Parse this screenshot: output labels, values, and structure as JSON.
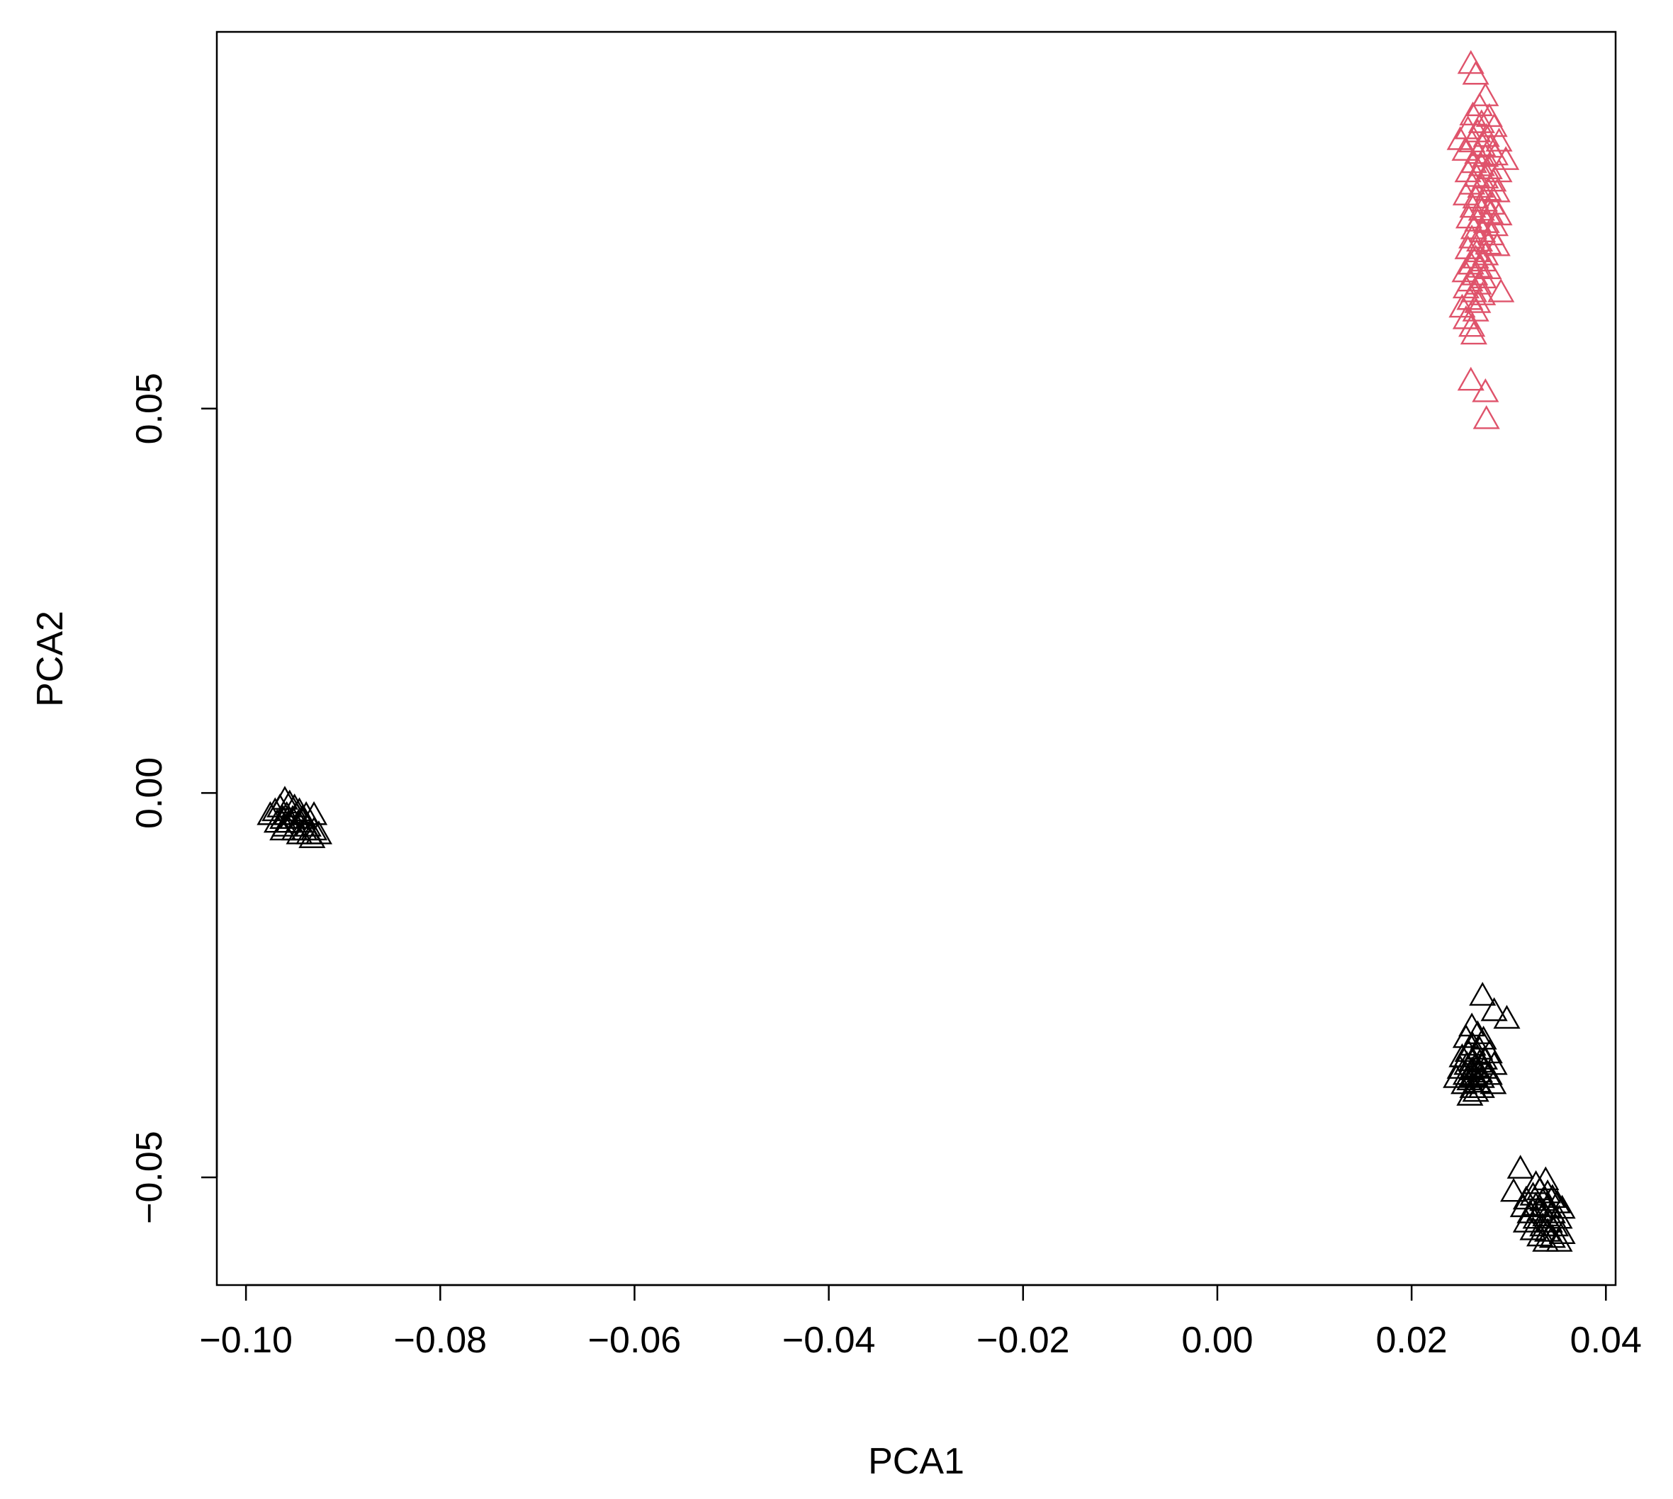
{
  "chart_data": {
    "type": "scatter",
    "title": "",
    "xlabel": "PCA1",
    "ylabel": "PCA2",
    "xlim": [
      -0.103,
      0.041
    ],
    "ylim": [
      -0.064,
      0.099
    ],
    "grid": false,
    "marker": "open-triangle",
    "x_ticks": [
      {
        "value": -0.1,
        "label": "−0.10"
      },
      {
        "value": -0.08,
        "label": "−0.08"
      },
      {
        "value": -0.06,
        "label": "−0.06"
      },
      {
        "value": -0.04,
        "label": "−0.04"
      },
      {
        "value": -0.02,
        "label": "−0.02"
      },
      {
        "value": 0.0,
        "label": "0.00"
      },
      {
        "value": 0.02,
        "label": "0.02"
      },
      {
        "value": 0.04,
        "label": "0.04"
      }
    ],
    "y_ticks": [
      {
        "value": -0.05,
        "label": "−0.05"
      },
      {
        "value": 0.0,
        "label": "0.00"
      },
      {
        "value": 0.05,
        "label": "0.05"
      }
    ],
    "series": [
      {
        "color": "#df536b",
        "points": [
          [
            0.0261,
            0.0947
          ],
          [
            0.0266,
            0.0933
          ],
          [
            0.0276,
            0.0905
          ],
          [
            0.027,
            0.0892
          ],
          [
            0.0263,
            0.088
          ],
          [
            0.028,
            0.0878
          ],
          [
            0.0272,
            0.087
          ],
          [
            0.0258,
            0.0862
          ],
          [
            0.0285,
            0.0865
          ],
          [
            0.0268,
            0.0858
          ],
          [
            0.0277,
            0.0852
          ],
          [
            0.025,
            0.0848
          ],
          [
            0.0262,
            0.0845
          ],
          [
            0.029,
            0.0846
          ],
          [
            0.0273,
            0.084
          ],
          [
            0.0281,
            0.0838
          ],
          [
            0.0255,
            0.0834
          ],
          [
            0.0268,
            0.083
          ],
          [
            0.0276,
            0.0826
          ],
          [
            0.0286,
            0.0828
          ],
          [
            0.0297,
            0.0822
          ],
          [
            0.0264,
            0.0818
          ],
          [
            0.0272,
            0.0814
          ],
          [
            0.028,
            0.081
          ],
          [
            0.0258,
            0.0806
          ],
          [
            0.029,
            0.0806
          ],
          [
            0.0267,
            0.08
          ],
          [
            0.0276,
            0.0798
          ],
          [
            0.0284,
            0.0794
          ],
          [
            0.0262,
            0.079
          ],
          [
            0.0271,
            0.0786
          ],
          [
            0.0279,
            0.0782
          ],
          [
            0.0288,
            0.078
          ],
          [
            0.0256,
            0.0776
          ],
          [
            0.0266,
            0.0772
          ],
          [
            0.0275,
            0.0768
          ],
          [
            0.0283,
            0.0764
          ],
          [
            0.0263,
            0.076
          ],
          [
            0.0272,
            0.0756
          ],
          [
            0.0281,
            0.0752
          ],
          [
            0.029,
            0.075
          ],
          [
            0.0259,
            0.0746
          ],
          [
            0.0268,
            0.0742
          ],
          [
            0.0277,
            0.074
          ],
          [
            0.0286,
            0.0736
          ],
          [
            0.0264,
            0.0732
          ],
          [
            0.0273,
            0.0728
          ],
          [
            0.0282,
            0.0724
          ],
          [
            0.0262,
            0.072
          ],
          [
            0.027,
            0.0716
          ],
          [
            0.0279,
            0.0712
          ],
          [
            0.0288,
            0.071
          ],
          [
            0.0258,
            0.0706
          ],
          [
            0.0267,
            0.0702
          ],
          [
            0.0276,
            0.0698
          ],
          [
            0.0266,
            0.0694
          ],
          [
            0.0274,
            0.069
          ],
          [
            0.0261,
            0.0686
          ],
          [
            0.027,
            0.0682
          ],
          [
            0.0279,
            0.068
          ],
          [
            0.0255,
            0.0676
          ],
          [
            0.0265,
            0.0672
          ],
          [
            0.0274,
            0.0668
          ],
          [
            0.026,
            0.0664
          ],
          [
            0.0269,
            0.066
          ],
          [
            0.0292,
            0.065
          ],
          [
            0.0256,
            0.0655
          ],
          [
            0.0264,
            0.065
          ],
          [
            0.0273,
            0.0646
          ],
          [
            0.026,
            0.064
          ],
          [
            0.0268,
            0.0636
          ],
          [
            0.0252,
            0.063
          ],
          [
            0.0266,
            0.0625
          ],
          [
            0.0256,
            0.0615
          ],
          [
            0.0262,
            0.0605
          ],
          [
            0.0264,
            0.0595
          ],
          [
            0.0261,
            0.0535
          ],
          [
            0.0276,
            0.052
          ],
          [
            0.0277,
            0.0485
          ]
        ]
      },
      {
        "color": "#000000",
        "points": [
          [
            -0.096,
            -0.001
          ],
          [
            -0.0955,
            -0.0015
          ],
          [
            -0.0965,
            -0.002
          ],
          [
            -0.095,
            -0.002
          ],
          [
            -0.0945,
            -0.0025
          ],
          [
            -0.097,
            -0.0025
          ],
          [
            -0.0958,
            -0.003
          ],
          [
            -0.0948,
            -0.003
          ],
          [
            -0.0938,
            -0.003
          ],
          [
            -0.0975,
            -0.003
          ],
          [
            -0.0962,
            -0.0035
          ],
          [
            -0.0952,
            -0.0035
          ],
          [
            -0.0942,
            -0.0035
          ],
          [
            -0.093,
            -0.003
          ],
          [
            -0.0968,
            -0.004
          ],
          [
            -0.0956,
            -0.004
          ],
          [
            -0.0946,
            -0.004
          ],
          [
            -0.0936,
            -0.0045
          ],
          [
            -0.096,
            -0.0045
          ],
          [
            -0.095,
            -0.005
          ],
          [
            -0.094,
            -0.005
          ],
          [
            -0.093,
            -0.005
          ],
          [
            -0.0962,
            -0.005
          ],
          [
            -0.0945,
            -0.0055
          ],
          [
            -0.0935,
            -0.0055
          ],
          [
            -0.0925,
            -0.0055
          ],
          [
            -0.0932,
            -0.006
          ],
          [
            0.0273,
            -0.0265
          ],
          [
            0.0285,
            -0.0285
          ],
          [
            0.0298,
            -0.0295
          ],
          [
            0.0262,
            -0.0305
          ],
          [
            0.0268,
            -0.0315
          ],
          [
            0.0256,
            -0.032
          ],
          [
            0.0274,
            -0.0322
          ],
          [
            0.0263,
            -0.033
          ],
          [
            0.027,
            -0.0335
          ],
          [
            0.0258,
            -0.0338
          ],
          [
            0.028,
            -0.034
          ],
          [
            0.0266,
            -0.0342
          ],
          [
            0.0252,
            -0.0345
          ],
          [
            0.0275,
            -0.0348
          ],
          [
            0.0262,
            -0.035
          ],
          [
            0.027,
            -0.0352
          ],
          [
            0.0285,
            -0.0355
          ],
          [
            0.0257,
            -0.0355
          ],
          [
            0.0265,
            -0.0358
          ],
          [
            0.0275,
            -0.036
          ],
          [
            0.025,
            -0.036
          ],
          [
            0.0262,
            -0.0362
          ],
          [
            0.027,
            -0.0365
          ],
          [
            0.028,
            -0.0368
          ],
          [
            0.0256,
            -0.0368
          ],
          [
            0.0264,
            -0.037
          ],
          [
            0.0272,
            -0.0372
          ],
          [
            0.0246,
            -0.0372
          ],
          [
            0.026,
            -0.0375
          ],
          [
            0.0268,
            -0.0378
          ],
          [
            0.0284,
            -0.038
          ],
          [
            0.0254,
            -0.038
          ],
          [
            0.0263,
            -0.0385
          ],
          [
            0.0272,
            -0.0385
          ],
          [
            0.0266,
            -0.039
          ],
          [
            0.026,
            -0.0395
          ],
          [
            0.0312,
            -0.049
          ],
          [
            0.0338,
            -0.0505
          ],
          [
            0.0328,
            -0.051
          ],
          [
            0.0305,
            -0.052
          ],
          [
            0.0332,
            -0.0518
          ],
          [
            0.034,
            -0.0522
          ],
          [
            0.0325,
            -0.0525
          ],
          [
            0.0345,
            -0.0528
          ],
          [
            0.0318,
            -0.053
          ],
          [
            0.0335,
            -0.0532
          ],
          [
            0.035,
            -0.0535
          ],
          [
            0.0328,
            -0.0538
          ],
          [
            0.034,
            -0.054
          ],
          [
            0.0315,
            -0.054
          ],
          [
            0.0355,
            -0.0542
          ],
          [
            0.0332,
            -0.0545
          ],
          [
            0.0345,
            -0.0548
          ],
          [
            0.0322,
            -0.0548
          ],
          [
            0.0338,
            -0.0552
          ],
          [
            0.0352,
            -0.0555
          ],
          [
            0.0328,
            -0.0555
          ],
          [
            0.0342,
            -0.056
          ],
          [
            0.0318,
            -0.056
          ],
          [
            0.0335,
            -0.0565
          ],
          [
            0.0348,
            -0.0565
          ],
          [
            0.0325,
            -0.057
          ],
          [
            0.034,
            -0.0572
          ],
          [
            0.0355,
            -0.0575
          ],
          [
            0.0332,
            -0.0578
          ],
          [
            0.0345,
            -0.058
          ],
          [
            0.0352,
            -0.0585
          ],
          [
            0.0338,
            -0.0585
          ]
        ]
      }
    ]
  }
}
